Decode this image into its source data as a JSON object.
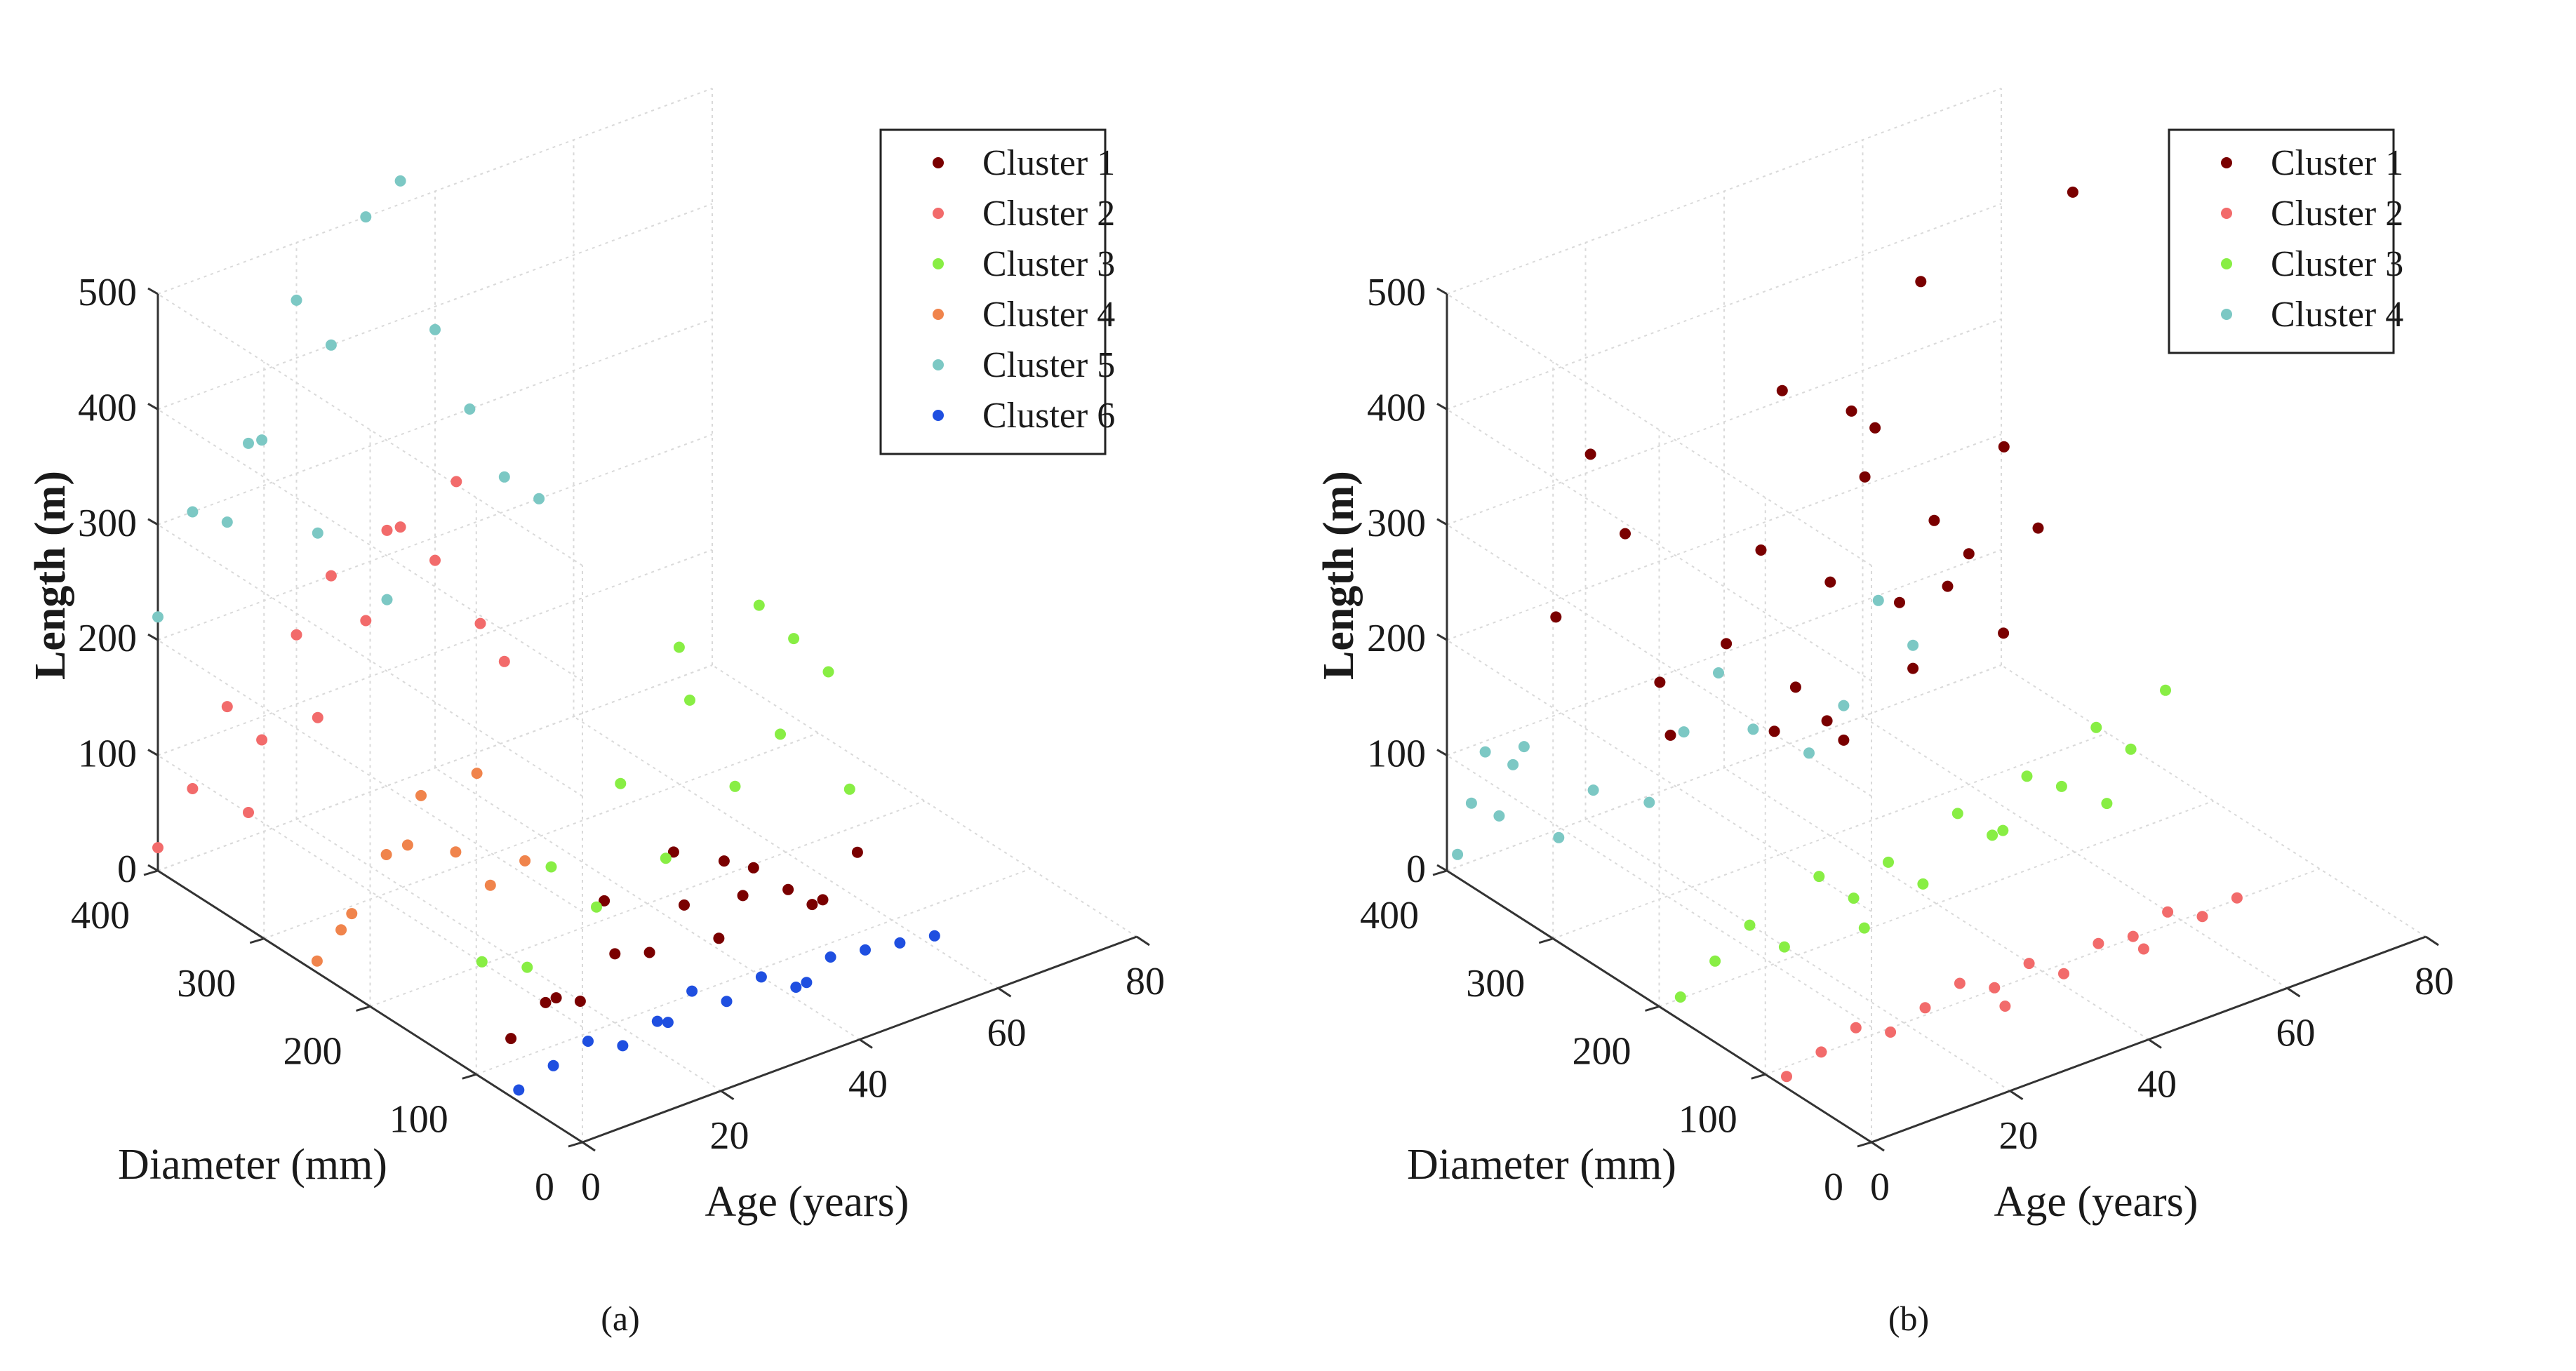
{
  "chart_data": [
    {
      "type": "scatter",
      "subtype": "scatter3d",
      "caption": "(a)",
      "title": "",
      "xlabel": "Age (years)",
      "ylabel": "Diameter (mm)",
      "zlabel": "Length (m)",
      "xlim": [
        0,
        80
      ],
      "ylim": [
        0,
        400
      ],
      "zlim": [
        0,
        500
      ],
      "xticks": [
        "0",
        "20",
        "40",
        "60",
        "80"
      ],
      "yticks": [
        "0",
        "100",
        "200",
        "300",
        "400"
      ],
      "zticks": [
        "0",
        "100",
        "200",
        "300",
        "400",
        "500"
      ],
      "grid": true,
      "legend_position": "top-right",
      "series": [
        {
          "name": "Cluster 1",
          "color": "#7a0000",
          "points": [
            [
              5,
              100,
              20
            ],
            [
              10,
              100,
              40
            ],
            [
              15,
              100,
              30
            ],
            [
              20,
              100,
              60
            ],
            [
              25,
              100,
              50
            ],
            [
              30,
              100,
              80
            ],
            [
              35,
              100,
              40
            ],
            [
              40,
              100,
              90
            ],
            [
              45,
              100,
              60
            ],
            [
              50,
              100,
              40
            ],
            [
              55,
              100,
              70
            ],
            [
              20,
              110,
              100
            ],
            [
              30,
              110,
              120
            ],
            [
              40,
              110,
              60
            ],
            [
              50,
              110,
              30
            ],
            [
              10,
              90,
              50
            ],
            [
              35,
              95,
              110
            ]
          ]
        },
        {
          "name": "Cluster 2",
          "color": "#f26b6b",
          "points": [
            [
              0,
              400,
              20
            ],
            [
              5,
              400,
              60
            ],
            [
              10,
              400,
              120
            ],
            [
              15,
              400,
              80
            ],
            [
              20,
              400,
              160
            ],
            [
              25,
              400,
              200
            ],
            [
              30,
              400,
              150
            ],
            [
              35,
              400,
              220
            ],
            [
              40,
              400,
              180
            ],
            [
              10,
              380,
              40
            ],
            [
              20,
              380,
              100
            ],
            [
              30,
              380,
              240
            ],
            [
              40,
              380,
              260
            ],
            [
              45,
              390,
              120
            ],
            [
              50,
              400,
              70
            ]
          ]
        },
        {
          "name": "Cluster 3",
          "color": "#88ee44",
          "points": [
            [
              10,
              160,
              40
            ],
            [
              20,
              160,
              100
            ],
            [
              30,
              160,
              150
            ],
            [
              40,
              160,
              200
            ],
            [
              50,
              160,
              260
            ],
            [
              55,
              160,
              220
            ],
            [
              60,
              160,
              180
            ],
            [
              45,
              150,
              120
            ],
            [
              35,
              150,
              80
            ],
            [
              25,
              150,
              60
            ],
            [
              15,
              150,
              30
            ],
            [
              50,
              140,
              160
            ],
            [
              60,
              140,
              90
            ],
            [
              40,
              170,
              240
            ]
          ]
        },
        {
          "name": "Cluster 4",
          "color": "#f0844c",
          "points": [
            [
              0,
              250,
              10
            ],
            [
              5,
              250,
              40
            ],
            [
              10,
              250,
              80
            ],
            [
              15,
              250,
              120
            ],
            [
              20,
              250,
              60
            ],
            [
              25,
              250,
              20
            ],
            [
              30,
              250,
              30
            ],
            [
              10,
              230,
              100
            ],
            [
              20,
              230,
              140
            ],
            [
              5,
              260,
              20
            ]
          ]
        },
        {
          "name": "Cluster 5",
          "color": "#7cc8c4",
          "points": [
            [
              0,
              400,
              220
            ],
            [
              5,
              400,
              300
            ],
            [
              10,
              400,
              280
            ],
            [
              15,
              400,
              340
            ],
            [
              20,
              400,
              450
            ],
            [
              25,
              400,
              400
            ],
            [
              30,
              400,
              500
            ],
            [
              35,
              400,
              520
            ],
            [
              10,
              380,
              360
            ],
            [
              20,
              380,
              260
            ],
            [
              30,
              380,
              180
            ],
            [
              40,
              400,
              380
            ],
            [
              45,
              400,
              300
            ],
            [
              50,
              400,
              230
            ],
            [
              55,
              400,
              200
            ]
          ]
        },
        {
          "name": "Cluster 6",
          "color": "#1f4fe0",
          "points": [
            [
              0,
              60,
              10
            ],
            [
              5,
              60,
              20
            ],
            [
              10,
              60,
              30
            ],
            [
              15,
              60,
              15
            ],
            [
              20,
              60,
              25
            ],
            [
              25,
              60,
              40
            ],
            [
              30,
              60,
              20
            ],
            [
              35,
              60,
              30
            ],
            [
              40,
              60,
              10
            ],
            [
              45,
              60,
              25
            ],
            [
              50,
              60,
              20
            ],
            [
              55,
              60,
              15
            ],
            [
              60,
              60,
              10
            ],
            [
              20,
              50,
              30
            ],
            [
              40,
              50,
              20
            ]
          ]
        }
      ]
    },
    {
      "type": "scatter",
      "subtype": "scatter3d",
      "caption": "(b)",
      "title": "",
      "xlabel": "Age (years)",
      "ylabel": "Diameter (mm)",
      "zlabel": "Length (m)",
      "xlim": [
        0,
        80
      ],
      "ylim": [
        0,
        400
      ],
      "zlim": [
        0,
        500
      ],
      "xticks": [
        "0",
        "20",
        "40",
        "60",
        "80"
      ],
      "yticks": [
        "0",
        "100",
        "200",
        "300",
        "400"
      ],
      "zticks": [
        "0",
        "100",
        "200",
        "300",
        "400",
        "500"
      ],
      "grid": true,
      "legend_position": "top-right",
      "series": [
        {
          "name": "Cluster 1",
          "color": "#7a0000",
          "points": [
            [
              5,
              330,
              250
            ],
            [
              10,
              330,
              380
            ],
            [
              15,
              330,
              300
            ],
            [
              20,
              330,
              160
            ],
            [
              25,
              300,
              200
            ],
            [
              30,
              300,
              270
            ],
            [
              35,
              300,
              140
            ],
            [
              40,
              300,
              220
            ],
            [
              45,
              300,
              300
            ],
            [
              50,
              300,
              180
            ],
            [
              55,
              300,
              240
            ],
            [
              30,
              280,
              420
            ],
            [
              40,
              280,
              380
            ],
            [
              50,
              280,
              470
            ],
            [
              60,
              300,
              200
            ],
            [
              20,
              320,
              120
            ],
            [
              35,
              320,
              90
            ],
            [
              45,
              320,
              60
            ],
            [
              55,
              320,
              100
            ],
            [
              60,
              320,
              160
            ],
            [
              65,
              300,
              120
            ],
            [
              70,
              300,
              200
            ],
            [
              75,
              300,
              480
            ],
            [
              62,
              280,
              300
            ],
            [
              48,
              310,
              330
            ],
            [
              38,
              290,
              110
            ]
          ]
        },
        {
          "name": "Cluster 2",
          "color": "#f26b6b",
          "points": [
            [
              0,
              80,
              10
            ],
            [
              5,
              80,
              20
            ],
            [
              10,
              80,
              30
            ],
            [
              15,
              80,
              15
            ],
            [
              20,
              80,
              25
            ],
            [
              25,
              80,
              35
            ],
            [
              30,
              80,
              20
            ],
            [
              35,
              80,
              30
            ],
            [
              40,
              80,
              10
            ],
            [
              45,
              80,
              25
            ],
            [
              50,
              80,
              20
            ],
            [
              55,
              80,
              30
            ],
            [
              60,
              80,
              15
            ],
            [
              65,
              80,
              20
            ],
            [
              30,
              70,
              10
            ],
            [
              50,
              70,
              15
            ]
          ]
        },
        {
          "name": "Cluster 3",
          "color": "#88ee44",
          "points": [
            [
              0,
              180,
              20
            ],
            [
              5,
              180,
              40
            ],
            [
              10,
              180,
              60
            ],
            [
              15,
              180,
              30
            ],
            [
              20,
              180,
              80
            ],
            [
              25,
              180,
              50
            ],
            [
              30,
              180,
              70
            ],
            [
              35,
              180,
              40
            ],
            [
              40,
              180,
              90
            ],
            [
              45,
              180,
              60
            ],
            [
              50,
              180,
              100
            ],
            [
              55,
              180,
              80
            ],
            [
              60,
              180,
              120
            ],
            [
              65,
              180,
              90
            ],
            [
              70,
              180,
              130
            ],
            [
              25,
              170,
              30
            ],
            [
              45,
              170,
              70
            ],
            [
              60,
              170,
              60
            ]
          ]
        },
        {
          "name": "Cluster 4",
          "color": "#7cc8c4",
          "points": [
            [
              0,
              390,
              20
            ],
            [
              2,
              390,
              60
            ],
            [
              4,
              390,
              100
            ],
            [
              6,
              390,
              40
            ],
            [
              8,
              390,
              80
            ],
            [
              5,
              360,
              120
            ],
            [
              10,
              360,
              30
            ],
            [
              15,
              360,
              60
            ],
            [
              20,
              340,
              50
            ],
            [
              25,
              340,
              100
            ],
            [
              30,
              340,
              140
            ],
            [
              35,
              340,
              80
            ],
            [
              40,
              320,
              60
            ],
            [
              45,
              320,
              90
            ],
            [
              50,
              320,
              170
            ],
            [
              55,
              320,
              120
            ]
          ]
        }
      ]
    }
  ]
}
